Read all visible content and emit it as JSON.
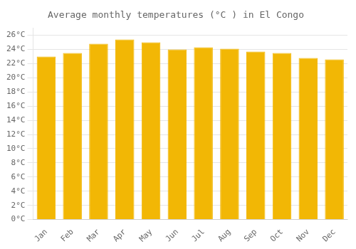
{
  "chart_data": {
    "type": "bar",
    "title": "Average monthly temperatures (°C ) in El Congo",
    "categories": [
      "Jan",
      "Feb",
      "Mar",
      "Apr",
      "May",
      "Jun",
      "Jul",
      "Aug",
      "Sep",
      "Oct",
      "Nov",
      "Dec"
    ],
    "values": [
      23.0,
      23.5,
      24.8,
      25.4,
      25.0,
      24.0,
      24.3,
      24.1,
      23.7,
      23.5,
      22.8,
      22.6
    ],
    "color": "#F2B705",
    "ylim": [
      0,
      27
    ],
    "yticks": [
      {
        "value": 0,
        "label": "0°C"
      },
      {
        "value": 2,
        "label": "2°C"
      },
      {
        "value": 4,
        "label": "4°C"
      },
      {
        "value": 6,
        "label": "6°C"
      },
      {
        "value": 8,
        "label": "8°C"
      },
      {
        "value": 10,
        "label": "10°C"
      },
      {
        "value": 12,
        "label": "12°C"
      },
      {
        "value": 14,
        "label": "14°C"
      },
      {
        "value": 16,
        "label": "16°C"
      },
      {
        "value": 18,
        "label": "18°C"
      },
      {
        "value": 20,
        "label": "20°C"
      },
      {
        "value": 22,
        "label": "22°C"
      },
      {
        "value": 24,
        "label": "24°C"
      },
      {
        "value": 26,
        "label": "26°C"
      }
    ],
    "grid": true
  }
}
